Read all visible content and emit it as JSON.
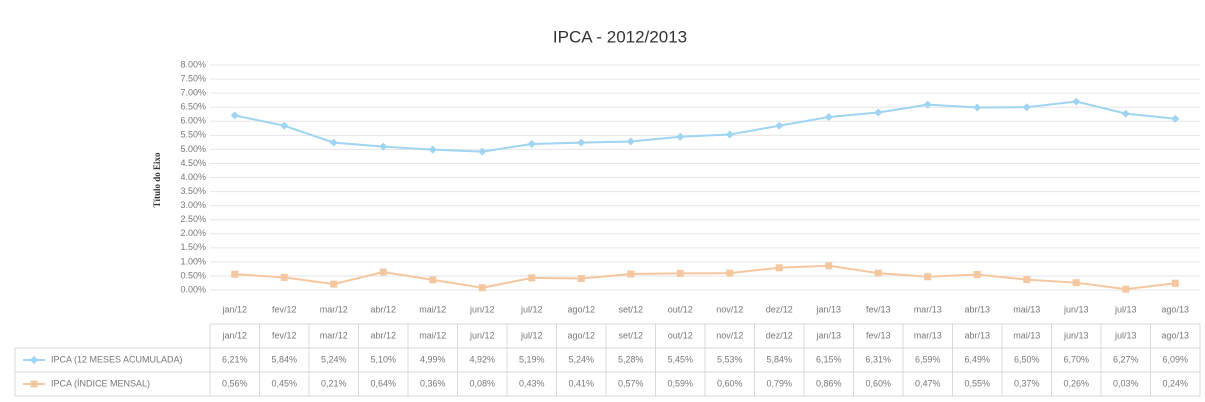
{
  "chart_data": {
    "type": "line",
    "title": "IPCA - 2012/2013",
    "y_axis_label": "Título do Eixo",
    "categories": [
      "jan/12",
      "fev/12",
      "mar/12",
      "abr/12",
      "mai/12",
      "jun/12",
      "jul/12",
      "ago/12",
      "set/12",
      "out/12",
      "nov/12",
      "dez/12",
      "jan/13",
      "fev/13",
      "mar/13",
      "abr/13",
      "mai/13",
      "jun/13",
      "jul/13",
      "ago/13"
    ],
    "series": [
      {
        "name": "IPCA (12 MESES ACUMULADA)",
        "color": "#9fd4f2",
        "values": [
          6.21,
          5.84,
          5.24,
          5.1,
          4.99,
          4.92,
          5.19,
          5.24,
          5.28,
          5.45,
          5.53,
          5.84,
          6.15,
          6.31,
          6.59,
          6.49,
          6.5,
          6.7,
          6.27,
          6.09
        ],
        "value_labels": [
          "6,21%",
          "5,84%",
          "5,24%",
          "5,10%",
          "4,99%",
          "4,92%",
          "5,19%",
          "5,24%",
          "5,28%",
          "5,45%",
          "5,53%",
          "5,84%",
          "6,15%",
          "6,31%",
          "6,59%",
          "6,49%",
          "6,50%",
          "6,70%",
          "6,27%",
          "6,09%"
        ]
      },
      {
        "name": "IPCA (ÍNDICE MENSAL)",
        "color": "#f4c7a0",
        "values": [
          0.56,
          0.45,
          0.21,
          0.64,
          0.36,
          0.08,
          0.43,
          0.41,
          0.57,
          0.59,
          0.6,
          0.79,
          0.86,
          0.6,
          0.47,
          0.55,
          0.37,
          0.26,
          0.03,
          0.24
        ],
        "value_labels": [
          "0,56%",
          "0,45%",
          "0,21%",
          "0,64%",
          "0,36%",
          "0,08%",
          "0,43%",
          "0,41%",
          "0,57%",
          "0,59%",
          "0,60%",
          "0,79%",
          "0,86%",
          "0,60%",
          "0,47%",
          "0,55%",
          "0,37%",
          "0,26%",
          "0,03%",
          "0,24%"
        ]
      }
    ],
    "ylim": [
      0,
      8
    ],
    "yticks": [
      {
        "value": 0,
        "label": "0.00%"
      },
      {
        "value": 0.5,
        "label": "0.50%"
      },
      {
        "value": 1,
        "label": "1.00%"
      },
      {
        "value": 1.5,
        "label": "1.50%"
      },
      {
        "value": 2,
        "label": "2.00%"
      },
      {
        "value": 2.5,
        "label": "2.50%"
      },
      {
        "value": 3,
        "label": "3.00%"
      },
      {
        "value": 3.5,
        "label": "3.50%"
      },
      {
        "value": 4,
        "label": "4.00%"
      },
      {
        "value": 4.5,
        "label": "4.50%"
      },
      {
        "value": 5,
        "label": "5.00%"
      },
      {
        "value": 5.5,
        "label": "5.50%"
      },
      {
        "value": 6,
        "label": "6.00%"
      },
      {
        "value": 6.5,
        "label": "6.50%"
      },
      {
        "value": 7,
        "label": "7.00%"
      },
      {
        "value": 7.5,
        "label": "7.50%"
      },
      {
        "value": 8,
        "label": "8.00%"
      }
    ],
    "grid": true
  }
}
